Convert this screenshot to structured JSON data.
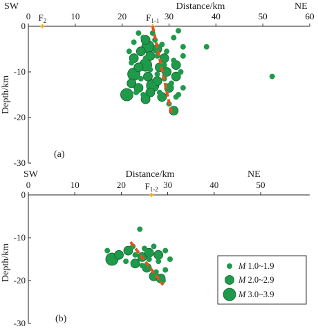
{
  "chart_data": [
    {
      "panel": "(a)",
      "type": "scatter",
      "xlabel": "Distance/km",
      "ylabel": "Depth/km",
      "xlim": [
        0,
        60
      ],
      "ylim": [
        -30,
        0
      ],
      "xticks": [
        0,
        10,
        20,
        30,
        40,
        50,
        60
      ],
      "yticks": [
        0,
        -10,
        -20,
        -30
      ],
      "direction_left": "SW",
      "direction_right": "NE",
      "fault_markers": [
        {
          "name": "F",
          "sub": "2",
          "x": 3
        },
        {
          "name": "F",
          "sub": "1-1",
          "x": 26.5
        }
      ],
      "fault_trace": {
        "x": [
          26.5,
          30.5
        ],
        "y": [
          0,
          -19
        ]
      },
      "points": [
        {
          "x": 26.5,
          "y": -1.5,
          "m": 1
        },
        {
          "x": 24.5,
          "y": -2.5,
          "m": 1
        },
        {
          "x": 23.5,
          "y": -1.5,
          "m": 1
        },
        {
          "x": 27,
          "y": -3,
          "m": 1
        },
        {
          "x": 28.5,
          "y": -4,
          "m": 1
        },
        {
          "x": 32,
          "y": -1,
          "m": 1
        },
        {
          "x": 31,
          "y": -2.5,
          "m": 1
        },
        {
          "x": 33,
          "y": -4.5,
          "m": 1
        },
        {
          "x": 38,
          "y": -4.5,
          "m": 1
        },
        {
          "x": 29.5,
          "y": -5.5,
          "m": 1
        },
        {
          "x": 33,
          "y": -6.5,
          "m": 1
        },
        {
          "x": 21.5,
          "y": -5.5,
          "m": 1
        },
        {
          "x": 22.5,
          "y": -3.5,
          "m": 1
        },
        {
          "x": 27.5,
          "y": -6.5,
          "m": 1
        },
        {
          "x": 31,
          "y": -7.5,
          "m": 1
        },
        {
          "x": 52,
          "y": -11,
          "m": 1
        },
        {
          "x": 32.5,
          "y": -10,
          "m": 1
        },
        {
          "x": 33,
          "y": -13.5,
          "m": 1
        },
        {
          "x": 22,
          "y": -8,
          "m": 1
        },
        {
          "x": 26,
          "y": -9.5,
          "m": 1
        },
        {
          "x": 24,
          "y": -11.5,
          "m": 1
        },
        {
          "x": 29,
          "y": -11.5,
          "m": 1
        },
        {
          "x": 26.5,
          "y": -13,
          "m": 1
        },
        {
          "x": 23,
          "y": -14.5,
          "m": 1
        },
        {
          "x": 28,
          "y": -14.5,
          "m": 1
        },
        {
          "x": 31.5,
          "y": -15.5,
          "m": 1
        },
        {
          "x": 30,
          "y": -17,
          "m": 1
        },
        {
          "x": 29,
          "y": -8.5,
          "m": 1
        },
        {
          "x": 25,
          "y": -7,
          "m": 1
        },
        {
          "x": 30.5,
          "y": -12.5,
          "m": 1
        },
        {
          "x": 27.5,
          "y": -10.5,
          "m": 1
        },
        {
          "x": 32,
          "y": -15,
          "m": 1
        },
        {
          "x": 24.5,
          "y": -15,
          "m": 1
        },
        {
          "x": 25,
          "y": -3,
          "m": 2
        },
        {
          "x": 27.5,
          "y": -5,
          "m": 2
        },
        {
          "x": 26,
          "y": -6.5,
          "m": 2
        },
        {
          "x": 29,
          "y": -7,
          "m": 2
        },
        {
          "x": 22.5,
          "y": -7,
          "m": 2
        },
        {
          "x": 28,
          "y": -9,
          "m": 2
        },
        {
          "x": 23.5,
          "y": -9,
          "m": 2
        },
        {
          "x": 31.5,
          "y": -8.5,
          "m": 2
        },
        {
          "x": 29.5,
          "y": -10,
          "m": 2
        },
        {
          "x": 25.5,
          "y": -11,
          "m": 2
        },
        {
          "x": 27.5,
          "y": -12,
          "m": 2
        },
        {
          "x": 22,
          "y": -12.5,
          "m": 2
        },
        {
          "x": 30,
          "y": -13.5,
          "m": 2
        },
        {
          "x": 23.5,
          "y": -13.5,
          "m": 2
        },
        {
          "x": 28.5,
          "y": -15.5,
          "m": 2
        },
        {
          "x": 26,
          "y": -14.5,
          "m": 2
        },
        {
          "x": 31,
          "y": -18.5,
          "m": 2
        },
        {
          "x": 25,
          "y": -16,
          "m": 2
        },
        {
          "x": 31.5,
          "y": -11,
          "m": 2
        },
        {
          "x": 24,
          "y": -5.5,
          "m": 2
        },
        {
          "x": 25.5,
          "y": -4.5,
          "m": 3
        },
        {
          "x": 22.5,
          "y": -10.5,
          "m": 3
        },
        {
          "x": 25,
          "y": -8.5,
          "m": 3
        },
        {
          "x": 26.5,
          "y": -13,
          "m": 3
        },
        {
          "x": 21,
          "y": -15,
          "m": 3
        }
      ]
    },
    {
      "panel": "(b)",
      "type": "scatter",
      "xlabel": "Distance/km",
      "ylabel": "Depth/km",
      "xlim": [
        0,
        50
      ],
      "ylim": [
        -30,
        0
      ],
      "xticks": [
        0,
        10,
        20,
        30,
        40,
        50
      ],
      "yticks": [
        0,
        -10,
        -20,
        -30
      ],
      "direction_left": "SW",
      "direction_right": "NE",
      "fault_markers": [
        {
          "name": "F",
          "sub": "1-2",
          "x": 26.5
        }
      ],
      "fault_trace": {
        "x": [
          22,
          29
        ],
        "y": [
          -11,
          -21
        ]
      },
      "points": [
        {
          "x": 24,
          "y": -8,
          "m": 1
        },
        {
          "x": 17,
          "y": -13,
          "m": 1
        },
        {
          "x": 22.5,
          "y": -12,
          "m": 1
        },
        {
          "x": 25,
          "y": -12.5,
          "m": 1
        },
        {
          "x": 27,
          "y": -12,
          "m": 1
        },
        {
          "x": 29.5,
          "y": -13,
          "m": 1
        },
        {
          "x": 30.5,
          "y": -15,
          "m": 1
        },
        {
          "x": 21,
          "y": -15.5,
          "m": 1
        },
        {
          "x": 23,
          "y": -14,
          "m": 1
        },
        {
          "x": 28,
          "y": -15.5,
          "m": 1
        },
        {
          "x": 24.5,
          "y": -16.5,
          "m": 1
        },
        {
          "x": 29.5,
          "y": -17.5,
          "m": 1
        },
        {
          "x": 27.5,
          "y": -18,
          "m": 1
        },
        {
          "x": 26,
          "y": -15,
          "m": 1
        },
        {
          "x": 29,
          "y": -20,
          "m": 1
        },
        {
          "x": 19.5,
          "y": -14,
          "m": 2
        },
        {
          "x": 21.5,
          "y": -13,
          "m": 2
        },
        {
          "x": 24.5,
          "y": -14.5,
          "m": 2
        },
        {
          "x": 26,
          "y": -13.5,
          "m": 2
        },
        {
          "x": 28,
          "y": -14,
          "m": 2
        },
        {
          "x": 23,
          "y": -16,
          "m": 2
        },
        {
          "x": 25.5,
          "y": -17,
          "m": 2
        },
        {
          "x": 27,
          "y": -19,
          "m": 2
        },
        {
          "x": 28.5,
          "y": -19.5,
          "m": 2
        },
        {
          "x": 18,
          "y": -15,
          "m": 3
        }
      ],
      "legend": {
        "placement": "bottom-right",
        "entries": [
          {
            "symbol": "M",
            "range": " 1.0~1.9",
            "m": 1
          },
          {
            "symbol": "M",
            "range": " 2.0~2.9",
            "m": 2
          },
          {
            "symbol": "M",
            "range": " 3.0~3.9",
            "m": 3
          }
        ]
      }
    }
  ],
  "colors": {
    "quake": "#1f9a4b",
    "fault_trace": "#e2531e",
    "fault_marker": "#f2b21a",
    "axis": "#222222"
  }
}
